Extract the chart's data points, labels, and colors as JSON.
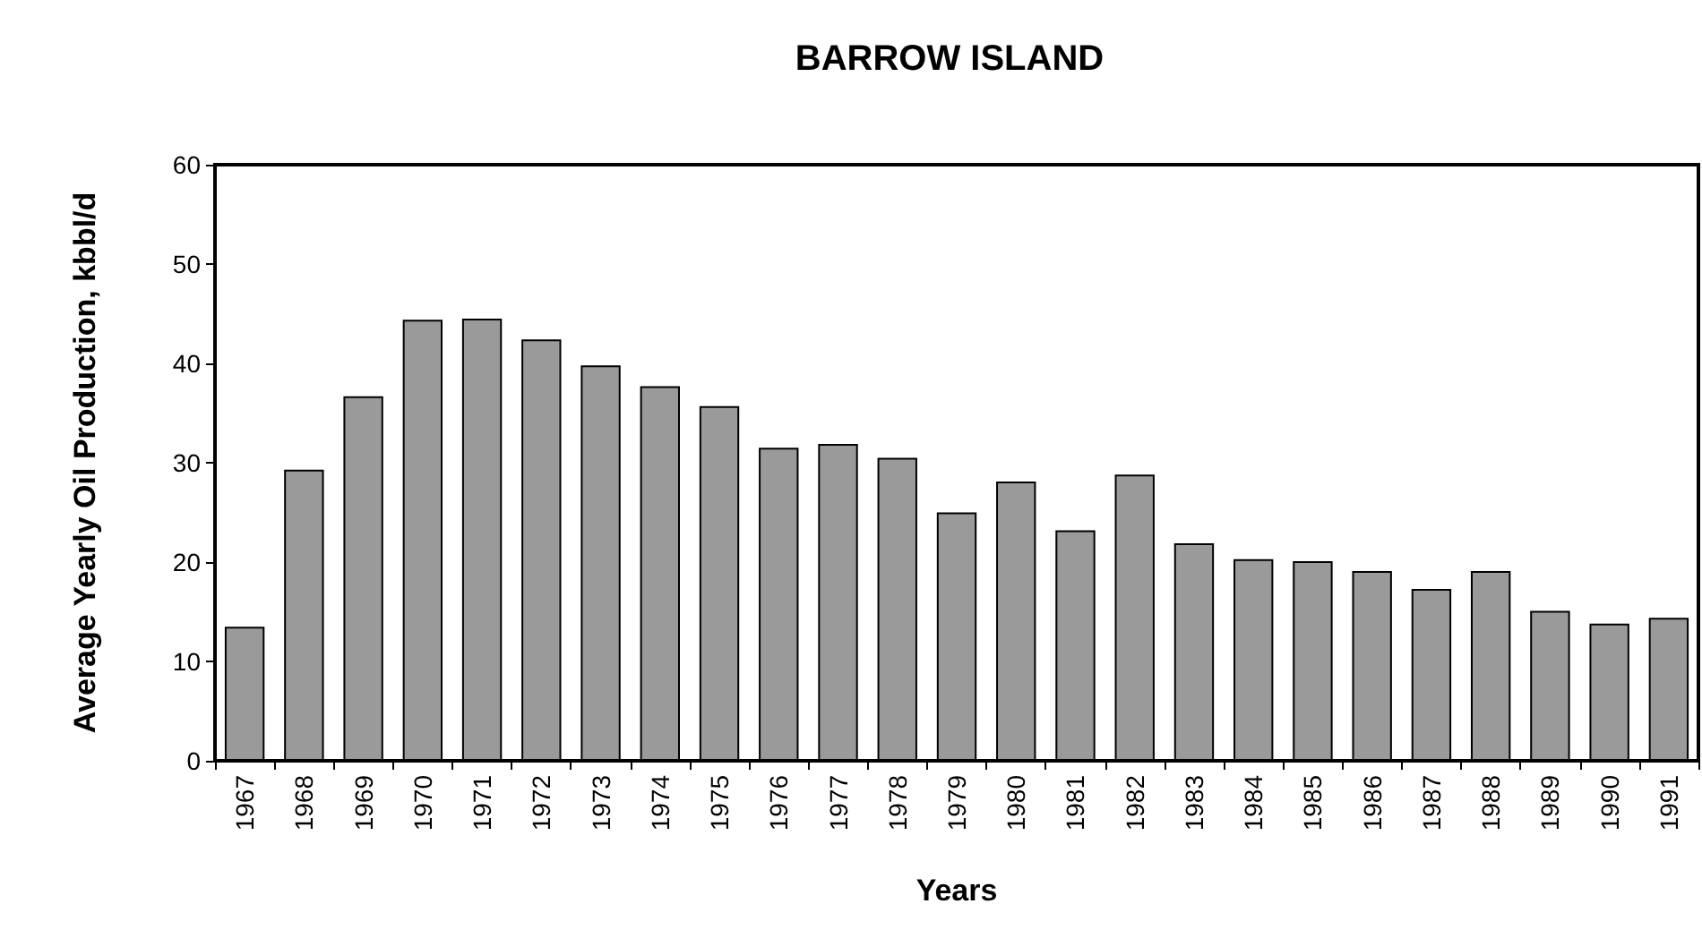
{
  "chart_data": {
    "type": "bar",
    "title": "BARROW ISLAND",
    "xlabel": "Years",
    "ylabel": "Average Yearly Oil Production, kbbl/d",
    "categories": [
      "1967",
      "1968",
      "1969",
      "1970",
      "1971",
      "1972",
      "1973",
      "1974",
      "1975",
      "1976",
      "1977",
      "1978",
      "1979",
      "1980",
      "1981",
      "1982",
      "1983",
      "1984",
      "1985",
      "1986",
      "1987",
      "1988",
      "1989",
      "1990",
      "1991"
    ],
    "values": [
      13.5,
      29.3,
      36.7,
      44.4,
      44.5,
      42.4,
      39.8,
      37.7,
      35.7,
      31.5,
      31.9,
      30.5,
      25.0,
      28.1,
      23.2,
      28.8,
      21.9,
      20.3,
      20.1,
      19.1,
      17.3,
      19.1,
      15.1,
      13.8,
      14.4
    ],
    "color": "#9a9a9a",
    "ylim": [
      0,
      60
    ],
    "yticks": [
      0,
      10,
      20,
      30,
      40,
      50,
      60
    ],
    "grid": false
  }
}
